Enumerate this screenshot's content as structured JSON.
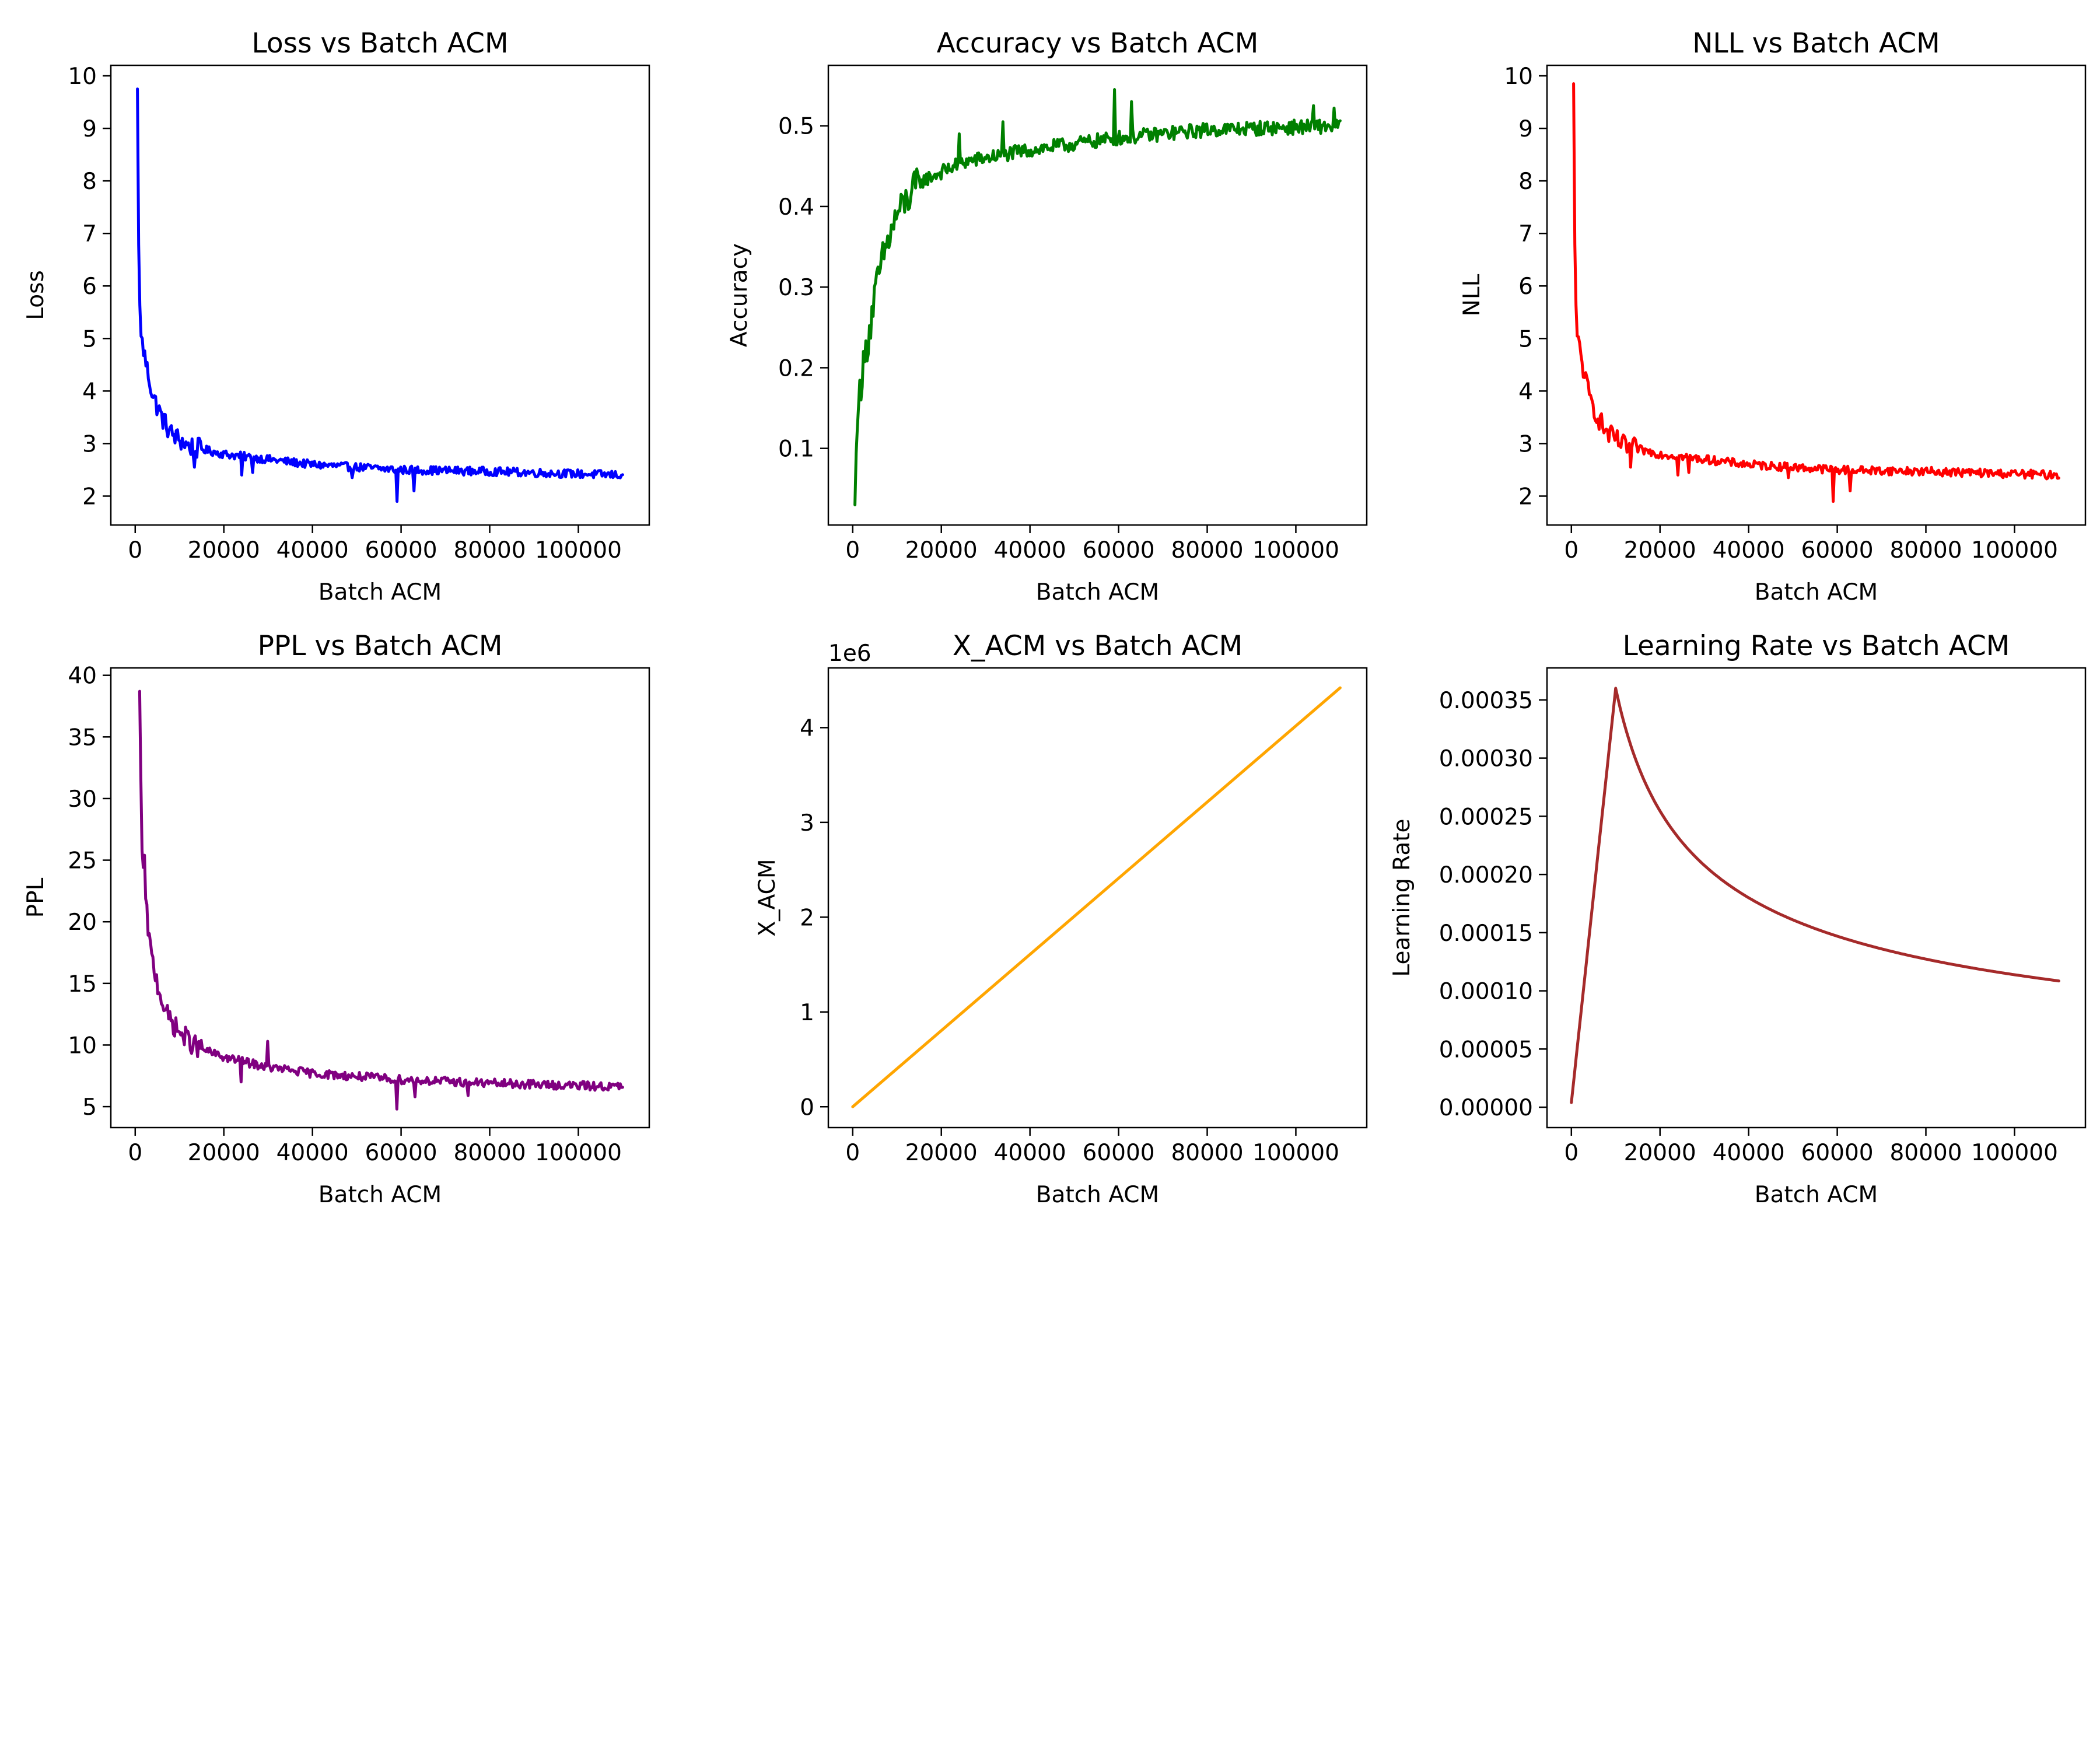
{
  "chart_data": [
    {
      "type": "line",
      "title": "Loss vs Batch ACM",
      "xlabel": "Batch ACM",
      "ylabel": "Loss",
      "xlim": [
        -5500,
        116000
      ],
      "ylim": [
        1.45,
        10.2
      ],
      "xticks": [
        0,
        20000,
        40000,
        60000,
        80000,
        100000
      ],
      "yticks": [
        2,
        3,
        4,
        5,
        6,
        7,
        8,
        9,
        10
      ],
      "grid": false,
      "color": "#0000ff",
      "series": [
        {
          "profile": "decay",
          "x_range": [
            500,
            110000
          ],
          "start": 9.75,
          "end": 2.4,
          "steps": 400,
          "noise": 0.08,
          "spikes": [
            [
              59000,
              1.9
            ],
            [
              63000,
              2.1
            ],
            [
              24000,
              2.4
            ],
            [
              26500,
              2.45
            ],
            [
              13500,
              2.55
            ],
            [
              49000,
              2.35
            ]
          ],
          "anchors": [
            [
              500,
              9.75
            ],
            [
              800,
              6.5
            ],
            [
              1200,
              5.1
            ],
            [
              2500,
              4.5
            ],
            [
              4000,
              3.9
            ],
            [
              6000,
              3.5
            ],
            [
              8000,
              3.2
            ],
            [
              12000,
              2.95
            ],
            [
              20000,
              2.8
            ],
            [
              40000,
              2.6
            ],
            [
              60000,
              2.5
            ],
            [
              80000,
              2.47
            ],
            [
              110000,
              2.4
            ]
          ]
        }
      ]
    },
    {
      "type": "line",
      "title": "Accuracy vs Batch ACM",
      "xlabel": "Batch ACM",
      "ylabel": "Accuracy",
      "xlim": [
        -5500,
        116000
      ],
      "ylim": [
        0.005,
        0.575
      ],
      "xticks": [
        0,
        20000,
        40000,
        60000,
        80000,
        100000
      ],
      "yticks": [
        0.1,
        0.2,
        0.3,
        0.4,
        0.5
      ],
      "grid": false,
      "color": "#008000",
      "series": [
        {
          "profile": "rise",
          "x_range": [
            500,
            110000
          ],
          "start": 0.03,
          "end": 0.5,
          "steps": 400,
          "noise": 0.009,
          "spikes": [
            [
              59000,
              0.545
            ],
            [
              63000,
              0.53
            ],
            [
              24000,
              0.49
            ],
            [
              34000,
              0.505
            ],
            [
              104000,
              0.525
            ],
            [
              108500,
              0.522
            ]
          ],
          "anchors": [
            [
              500,
              0.03
            ],
            [
              800,
              0.1
            ],
            [
              1500,
              0.17
            ],
            [
              3000,
              0.22
            ],
            [
              5000,
              0.29
            ],
            [
              7000,
              0.34
            ],
            [
              10000,
              0.39
            ],
            [
              15000,
              0.43
            ],
            [
              25000,
              0.455
            ],
            [
              40000,
              0.47
            ],
            [
              60000,
              0.485
            ],
            [
              80000,
              0.495
            ],
            [
              110000,
              0.5
            ]
          ]
        }
      ]
    },
    {
      "type": "line",
      "title": "NLL vs Batch ACM",
      "xlabel": "Batch ACM",
      "ylabel": "NLL",
      "xlim": [
        -5500,
        116000
      ],
      "ylim": [
        1.45,
        10.2
      ],
      "xticks": [
        0,
        20000,
        40000,
        60000,
        80000,
        100000
      ],
      "yticks": [
        2,
        3,
        4,
        5,
        6,
        7,
        8,
        9,
        10
      ],
      "grid": false,
      "color": "#ff0000",
      "series": [
        {
          "profile": "decay",
          "x_range": [
            500,
            110000
          ],
          "start": 9.85,
          "end": 2.4,
          "steps": 400,
          "noise": 0.08,
          "spikes": [
            [
              59000,
              1.9
            ],
            [
              63000,
              2.1
            ],
            [
              24000,
              2.4
            ],
            [
              26500,
              2.45
            ],
            [
              13500,
              2.55
            ],
            [
              49000,
              2.35
            ]
          ],
          "anchors": [
            [
              500,
              9.85
            ],
            [
              800,
              6.5
            ],
            [
              1200,
              5.1
            ],
            [
              2500,
              4.5
            ],
            [
              4000,
              3.9
            ],
            [
              6000,
              3.5
            ],
            [
              8000,
              3.2
            ],
            [
              12000,
              2.95
            ],
            [
              20000,
              2.8
            ],
            [
              40000,
              2.6
            ],
            [
              60000,
              2.5
            ],
            [
              80000,
              2.47
            ],
            [
              110000,
              2.4
            ]
          ]
        }
      ]
    },
    {
      "type": "line",
      "title": "PPL vs Batch ACM",
      "xlabel": "Batch ACM",
      "ylabel": "PPL",
      "xlim": [
        -5500,
        116000
      ],
      "ylim": [
        3.3,
        40.6
      ],
      "xticks": [
        0,
        20000,
        40000,
        60000,
        80000,
        100000
      ],
      "yticks": [
        5,
        10,
        15,
        20,
        25,
        30,
        35,
        40
      ],
      "grid": false,
      "color": "#800080",
      "series": [
        {
          "profile": "decay",
          "x_range": [
            1000,
            110000
          ],
          "start": 38.7,
          "end": 6.6,
          "steps": 400,
          "noise": 0.35,
          "spikes": [
            [
              59000,
              4.8
            ],
            [
              30000,
              10.3
            ],
            [
              63000,
              5.8
            ],
            [
              24000,
              7.0
            ],
            [
              75000,
              5.9
            ],
            [
              2000,
              25.4
            ]
          ],
          "anchors": [
            [
              1000,
              38.7
            ],
            [
              1500,
              26.0
            ],
            [
              2500,
              21.0
            ],
            [
              3500,
              17.5
            ],
            [
              5000,
              15.0
            ],
            [
              7000,
              12.5
            ],
            [
              10000,
              11.0
            ],
            [
              14000,
              9.8
            ],
            [
              20000,
              9.0
            ],
            [
              30000,
              8.2
            ],
            [
              40000,
              7.7
            ],
            [
              60000,
              7.2
            ],
            [
              80000,
              6.9
            ],
            [
              110000,
              6.6
            ]
          ]
        }
      ]
    },
    {
      "type": "line",
      "title": "X_ACM vs Batch ACM",
      "xlabel": "Batch ACM",
      "ylabel": "X_ACM",
      "offset_label": "1e6",
      "xlim": [
        -5500,
        116000
      ],
      "ylim": [
        -0.22,
        4.63
      ],
      "y_scale_factor": 1000000,
      "xticks": [
        0,
        20000,
        40000,
        60000,
        80000,
        100000
      ],
      "yticks": [
        0,
        1,
        2,
        3,
        4
      ],
      "grid": false,
      "color": "#ffa500",
      "series": [
        {
          "profile": "linear",
          "x_range": [
            0,
            110000
          ],
          "start": 0,
          "end": 4.42,
          "steps": 2
        }
      ]
    },
    {
      "type": "line",
      "title": "Learning Rate vs Batch ACM",
      "xlabel": "Batch ACM",
      "ylabel": "Learning Rate",
      "xlim": [
        -5500,
        116000
      ],
      "ylim": [
        -1.75e-05,
        0.0003775
      ],
      "xticks": [
        0,
        20000,
        40000,
        60000,
        80000,
        100000
      ],
      "yticks": [
        0,
        5e-05,
        0.0001,
        0.00015,
        0.0002,
        0.00025,
        0.0003,
        0.00035
      ],
      "ytick_labels": [
        "0.00000",
        "0.00005",
        "0.00010",
        "0.00015",
        "0.00020",
        "0.00025",
        "0.00030",
        "0.00035"
      ],
      "grid": false,
      "color": "#a52a2a",
      "series": [
        {
          "profile": "warmup_rsqrt",
          "x_range": [
            0,
            110000
          ],
          "start": 4e-06,
          "peak_x": 10000,
          "peak": 0.00036,
          "end": 0.000109,
          "steps": 300
        }
      ]
    }
  ]
}
